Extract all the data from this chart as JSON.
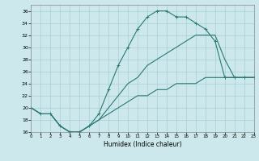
{
  "xlabel": "Humidex (Indice chaleur)",
  "xlim": [
    0,
    23
  ],
  "ylim": [
    16,
    37
  ],
  "yticks": [
    16,
    18,
    20,
    22,
    24,
    26,
    28,
    30,
    32,
    34,
    36
  ],
  "xticks": [
    0,
    1,
    2,
    3,
    4,
    5,
    6,
    7,
    8,
    9,
    10,
    11,
    12,
    13,
    14,
    15,
    16,
    17,
    18,
    19,
    20,
    21,
    22,
    23
  ],
  "bg_color": "#cce8ec",
  "grid_color": "#a8cfd4",
  "line_color": "#2a7a72",
  "line1_x": [
    0,
    1,
    2,
    3,
    4,
    5,
    6,
    7,
    8,
    9,
    10,
    11,
    12,
    13,
    14,
    15,
    16,
    17,
    18,
    19,
    20,
    21,
    22,
    23
  ],
  "line1_y": [
    20,
    19,
    19,
    17,
    16,
    16,
    17,
    19,
    23,
    27,
    30,
    33,
    35,
    36,
    36,
    35,
    35,
    34,
    33,
    31,
    25,
    25,
    25,
    25
  ],
  "line2_x": [
    0,
    1,
    2,
    3,
    4,
    5,
    6,
    7,
    8,
    9,
    10,
    11,
    12,
    13,
    14,
    15,
    16,
    17,
    18,
    19,
    20,
    21,
    22,
    23
  ],
  "line2_y": [
    20,
    19,
    19,
    17,
    16,
    16,
    17,
    18,
    20,
    22,
    24,
    25,
    27,
    28,
    29,
    30,
    31,
    32,
    32,
    32,
    28,
    25,
    25,
    25
  ],
  "line3_x": [
    0,
    1,
    2,
    3,
    4,
    5,
    6,
    7,
    8,
    9,
    10,
    11,
    12,
    13,
    14,
    15,
    16,
    17,
    18,
    19,
    20,
    21,
    22,
    23
  ],
  "line3_y": [
    20,
    19,
    19,
    17,
    16,
    16,
    17,
    18,
    19,
    20,
    21,
    22,
    22,
    23,
    23,
    24,
    24,
    24,
    25,
    25,
    25,
    25,
    25,
    25
  ]
}
